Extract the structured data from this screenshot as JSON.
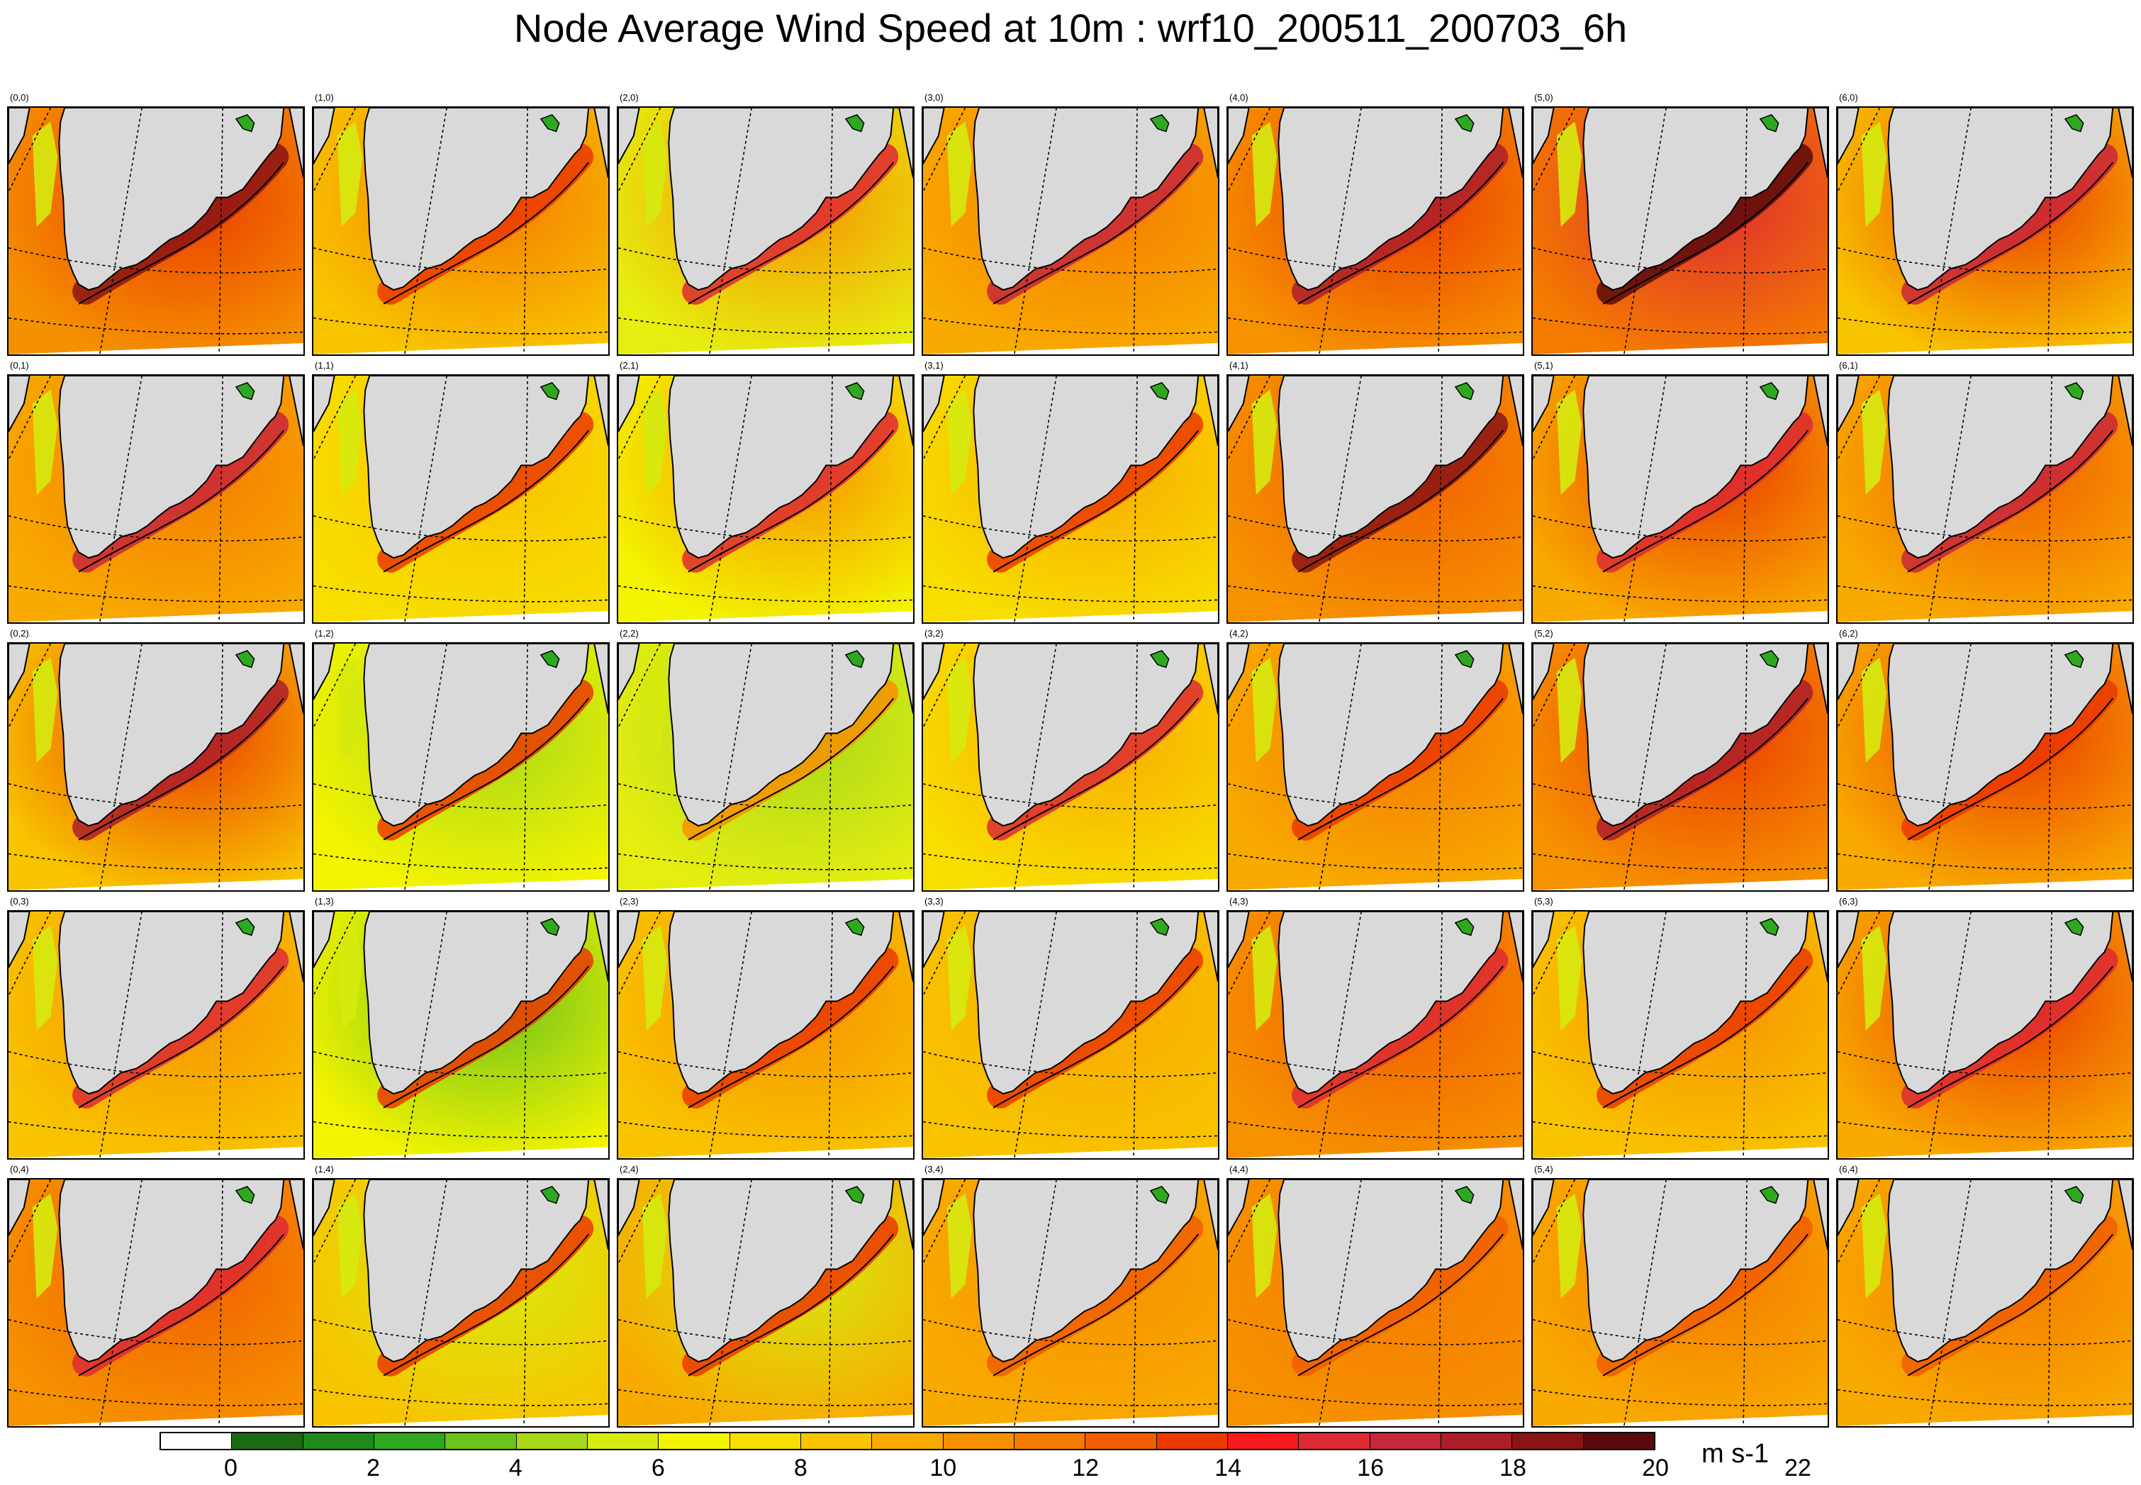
{
  "title": "Node Average Wind Speed at 10m : wrf10_200511_200703_6h",
  "units": "m s-1",
  "colors": {
    "land": "#d9d9d9",
    "coast": "#000000",
    "graticule": "#000000"
  },
  "colorbar": {
    "boxes": [
      "#ffffff",
      "#1a6b12",
      "#1f8a1a",
      "#2ea81f",
      "#6cc21c",
      "#a8d81a",
      "#d6ea10",
      "#f4f400",
      "#f8dd00",
      "#f8c400",
      "#f8aa00",
      "#f69100",
      "#f47a00",
      "#f05e00",
      "#ea3a00",
      "#f81a1a",
      "#dd2a33",
      "#c8263a",
      "#ac1e2a",
      "#8a1414",
      "#5a0a0a"
    ],
    "ticks": [
      "0",
      "2",
      "4",
      "6",
      "8",
      "10",
      "12",
      "14",
      "16",
      "18",
      "20",
      "22"
    ]
  },
  "nodes": [
    {
      "label": "(0,0)",
      "base": "#f59100",
      "jet": "#8a1414",
      "hi": "#ea3a00"
    },
    {
      "label": "(1,0)",
      "base": "#f8c400",
      "jet": "#ea3a00",
      "hi": "#f47a00"
    },
    {
      "label": "(2,0)",
      "base": "#e6ee10",
      "jet": "#dd2a33",
      "hi": "#f69100"
    },
    {
      "label": "(3,0)",
      "base": "#f8aa00",
      "jet": "#c8263a",
      "hi": "#f47a00"
    },
    {
      "label": "(4,0)",
      "base": "#f69100",
      "jet": "#ac1e2a",
      "hi": "#ea3a00"
    },
    {
      "label": "(5,0)",
      "base": "#f47a00",
      "jet": "#5a0a0a",
      "hi": "#dd2a33"
    },
    {
      "label": "(6,0)",
      "base": "#f8c400",
      "jet": "#c8263a",
      "hi": "#ea3a00"
    },
    {
      "label": "(0,1)",
      "base": "#f8aa00",
      "jet": "#c8263a",
      "hi": "#f47a00"
    },
    {
      "label": "(1,1)",
      "base": "#f8dd00",
      "jet": "#ea3a00",
      "hi": "#f8c400"
    },
    {
      "label": "(2,1)",
      "base": "#f4f400",
      "jet": "#dd2a33",
      "hi": "#f69100"
    },
    {
      "label": "(3,1)",
      "base": "#f8dd00",
      "jet": "#ea3a00",
      "hi": "#f8aa00"
    },
    {
      "label": "(4,1)",
      "base": "#f69100",
      "jet": "#8a1414",
      "hi": "#f05e00"
    },
    {
      "label": "(5,1)",
      "base": "#f8aa00",
      "jet": "#dd2a33",
      "hi": "#ea3a00"
    },
    {
      "label": "(6,1)",
      "base": "#f8aa00",
      "jet": "#c8263a",
      "hi": "#f05e00"
    },
    {
      "label": "(0,2)",
      "base": "#f8c400",
      "jet": "#ac1e2a",
      "hi": "#ea3a00"
    },
    {
      "label": "(1,2)",
      "base": "#f4f400",
      "jet": "#ea3a00",
      "hi": "#a8d81a"
    },
    {
      "label": "(2,2)",
      "base": "#e6ee10",
      "jet": "#f69100",
      "hi": "#a8d81a"
    },
    {
      "label": "(3,2)",
      "base": "#f8dd00",
      "jet": "#dd2a33",
      "hi": "#f8aa00"
    },
    {
      "label": "(4,2)",
      "base": "#f8aa00",
      "jet": "#ea3a00",
      "hi": "#f47a00"
    },
    {
      "label": "(5,2)",
      "base": "#f69100",
      "jet": "#ac1e2a",
      "hi": "#ea3a00"
    },
    {
      "label": "(6,2)",
      "base": "#f8aa00",
      "jet": "#ea3a00",
      "hi": "#ea3a00"
    },
    {
      "label": "(0,3)",
      "base": "#f8c400",
      "jet": "#dd2a33",
      "hi": "#f69100"
    },
    {
      "label": "(1,3)",
      "base": "#f4f400",
      "jet": "#ea3a00",
      "hi": "#6cc21c"
    },
    {
      "label": "(2,3)",
      "base": "#f8c400",
      "jet": "#ea3a00",
      "hi": "#f69100"
    },
    {
      "label": "(3,3)",
      "base": "#f8c400",
      "jet": "#ea3a00",
      "hi": "#f8aa00"
    },
    {
      "label": "(4,3)",
      "base": "#f69100",
      "jet": "#dd2a33",
      "hi": "#f05e00"
    },
    {
      "label": "(5,3)",
      "base": "#f8c400",
      "jet": "#ea3a00",
      "hi": "#f69100"
    },
    {
      "label": "(6,3)",
      "base": "#f8aa00",
      "jet": "#dd2a33",
      "hi": "#ea3a00"
    },
    {
      "label": "(0,4)",
      "base": "#f69100",
      "jet": "#dd2a33",
      "hi": "#f05e00"
    },
    {
      "label": "(1,4)",
      "base": "#f8c400",
      "jet": "#ea3a00",
      "hi": "#d6ea10"
    },
    {
      "label": "(2,4)",
      "base": "#f8aa00",
      "jet": "#ea3a00",
      "hi": "#d6ea10"
    },
    {
      "label": "(3,4)",
      "base": "#f8aa00",
      "jet": "#f05e00",
      "hi": "#f69100"
    },
    {
      "label": "(4,4)",
      "base": "#f69100",
      "jet": "#f05e00",
      "hi": "#f47a00"
    },
    {
      "label": "(5,4)",
      "base": "#f8aa00",
      "jet": "#f05e00",
      "hi": "#f47a00"
    },
    {
      "label": "(6,4)",
      "base": "#f8aa00",
      "jet": "#f05e00",
      "hi": "#f47a00"
    }
  ]
}
